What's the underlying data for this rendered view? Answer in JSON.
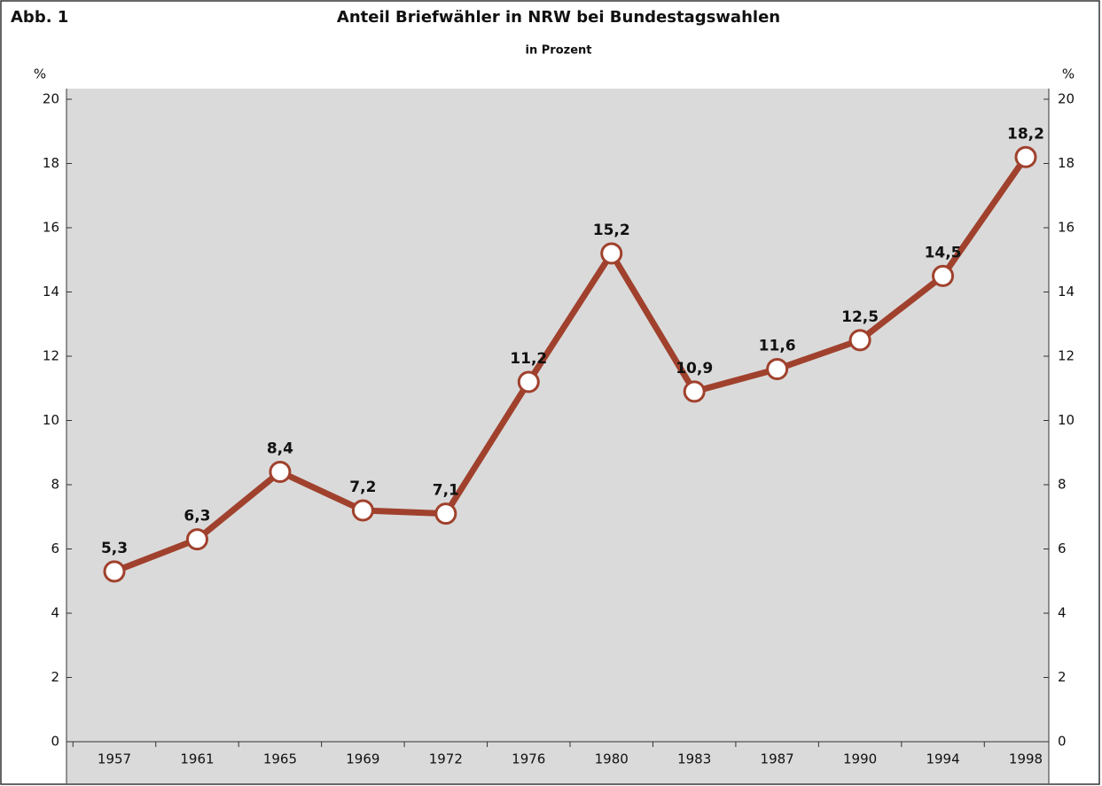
{
  "figure_label": "Abb. 1",
  "chart_data": {
    "type": "line",
    "title": "Anteil Briefwähler in NRW bei Bundestagswahlen",
    "subtitle": "in Prozent",
    "ylabel": "%",
    "y2label": "%",
    "categories": [
      "1957",
      "1961",
      "1965",
      "1969",
      "1972",
      "1976",
      "1980",
      "1983",
      "1987",
      "1990",
      "1994",
      "1998"
    ],
    "values": [
      5.3,
      6.3,
      8.4,
      7.2,
      7.1,
      11.2,
      15.2,
      10.9,
      11.6,
      12.5,
      14.5,
      18.2
    ],
    "value_labels": [
      "5,3",
      "6,3",
      "8,4",
      "7,2",
      "7,1",
      "11,2",
      "15,2",
      "10,9",
      "11,6",
      "12,5",
      "14,5",
      "18,2"
    ],
    "color": "#a0412d",
    "ylim": [
      0,
      20
    ],
    "yticks": [
      0,
      2,
      4,
      6,
      8,
      10,
      12,
      14,
      16,
      18,
      20
    ],
    "y2lim": [
      0,
      20
    ],
    "y2ticks": [
      0,
      2,
      4,
      6,
      8,
      10,
      12,
      14,
      16,
      18,
      20
    ]
  }
}
